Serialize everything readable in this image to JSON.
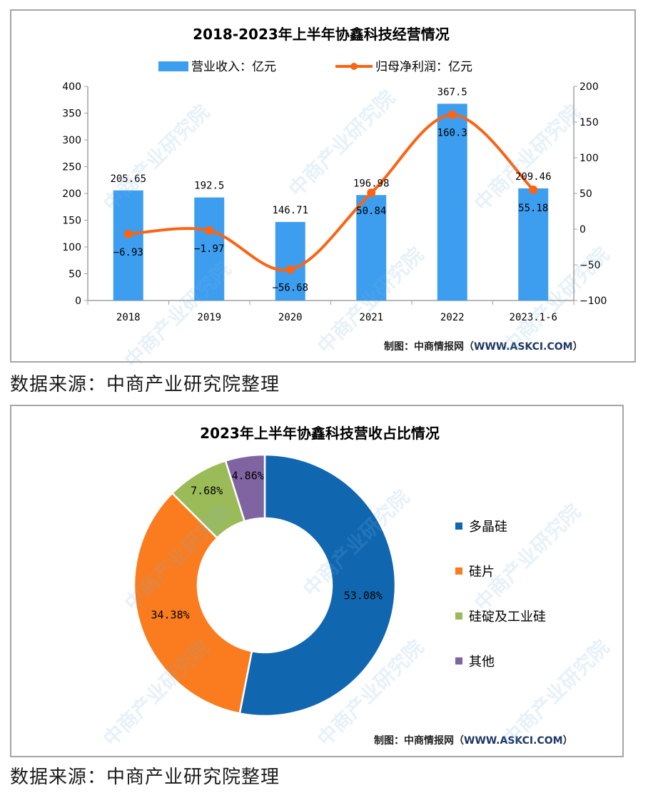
{
  "panel1": {
    "title": "2018-2023年上半年协鑫科技经营情况",
    "legend": [
      {
        "label": "营业收入：亿元",
        "type": "bar",
        "color": "#3d9ef0"
      },
      {
        "label": "归母净利润：亿元",
        "type": "line",
        "color": "#fa6414"
      }
    ],
    "credit_prefix": "制图：中商情报网（",
    "credit_url": "WWW.ASKCI.COM",
    "credit_suffix": "）"
  },
  "panel2": {
    "title": "2023年上半年协鑫科技营收占比情况",
    "legend": [
      {
        "label": "多晶硅",
        "color": "#1067b0"
      },
      {
        "label": "硅片",
        "color": "#fa7c1e"
      },
      {
        "label": "硅碇及工业硅",
        "color": "#9bbb59"
      },
      {
        "label": "其他",
        "color": "#8064a2"
      }
    ],
    "credit_prefix": "制图：中商情报网（",
    "credit_url": "WWW.ASKCI.COM",
    "credit_suffix": "）"
  },
  "source_note": "数据来源：中商产业研究院整理",
  "watermark": "中商产业研究院",
  "chart_data": [
    {
      "type": "bar",
      "title": "2018-2023年上半年协鑫科技经营情况",
      "categories": [
        "2018",
        "2019",
        "2020",
        "2021",
        "2022",
        "2023.1-6"
      ],
      "series": [
        {
          "name": "营业收入：亿元",
          "type": "bar",
          "axis": "left",
          "color": "#3d9ef0",
          "values": [
            205.65,
            192.5,
            146.71,
            196.98,
            367.5,
            209.46
          ],
          "labels": [
            "205.65",
            "192.5",
            "146.71",
            "196.98",
            "367.5",
            "209.46"
          ]
        },
        {
          "name": "归母净利润：亿元",
          "type": "line",
          "axis": "right",
          "color": "#fa6414",
          "values": [
            -6.93,
            -1.97,
            -56.68,
            50.84,
            160.3,
            55.18
          ],
          "labels": [
            "-6.93",
            "-1.97",
            "-56.68",
            "50.84",
            "160.3",
            "55.18"
          ]
        }
      ],
      "y_left": {
        "ylim": [
          0,
          400
        ],
        "ticks": [
          "0",
          "50",
          "100",
          "150",
          "200",
          "250",
          "300",
          "350",
          "400"
        ]
      },
      "y_right": {
        "ylim": [
          -100,
          200
        ],
        "ticks": [
          "-100",
          "-50",
          "0",
          "50",
          "100",
          "150",
          "200"
        ]
      },
      "xlabel": "",
      "ylabel": "",
      "grid": false,
      "legend_position": "top"
    },
    {
      "type": "pie",
      "subtype": "donut",
      "title": "2023年上半年协鑫科技营收占比情况",
      "categories": [
        "多晶硅",
        "硅片",
        "硅碇及工业硅",
        "其他"
      ],
      "values": [
        53.08,
        34.38,
        7.68,
        4.86
      ],
      "labels": [
        "53.08%",
        "34.38%",
        "7.68%",
        "4.86%"
      ],
      "colors": [
        "#1067b0",
        "#fa7c1e",
        "#9bbb59",
        "#8064a2"
      ],
      "legend_position": "right"
    }
  ]
}
